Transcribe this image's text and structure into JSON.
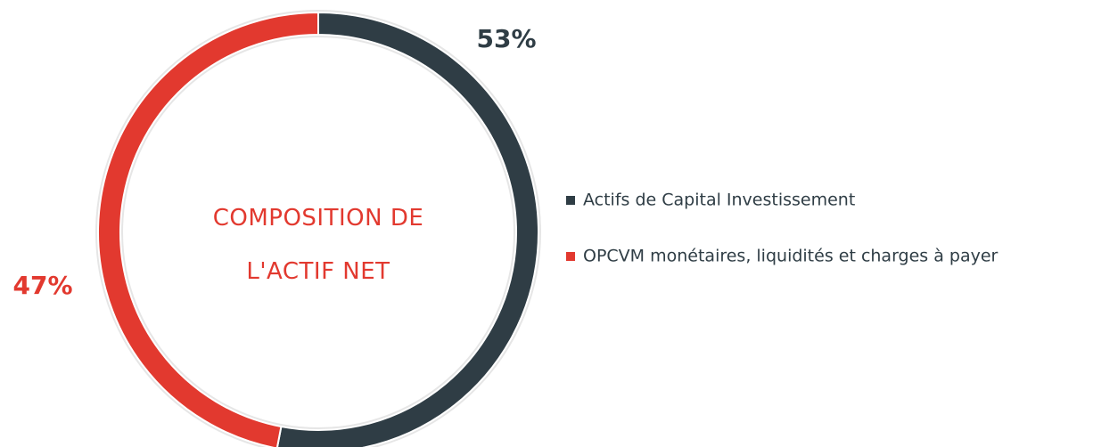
{
  "chart_data": {
    "type": "pie",
    "donut": true,
    "title": "COMPOSITION DE L'ACTIF NET",
    "categories": [
      "Actifs de Capital Investissement",
      "OPCVM monétaires, liquidités et charges à payer"
    ],
    "values": [
      53,
      47
    ],
    "value_labels": [
      "53%",
      "47%"
    ],
    "colors": [
      "#2f3d45",
      "#e2392f"
    ],
    "legend": "right"
  }
}
